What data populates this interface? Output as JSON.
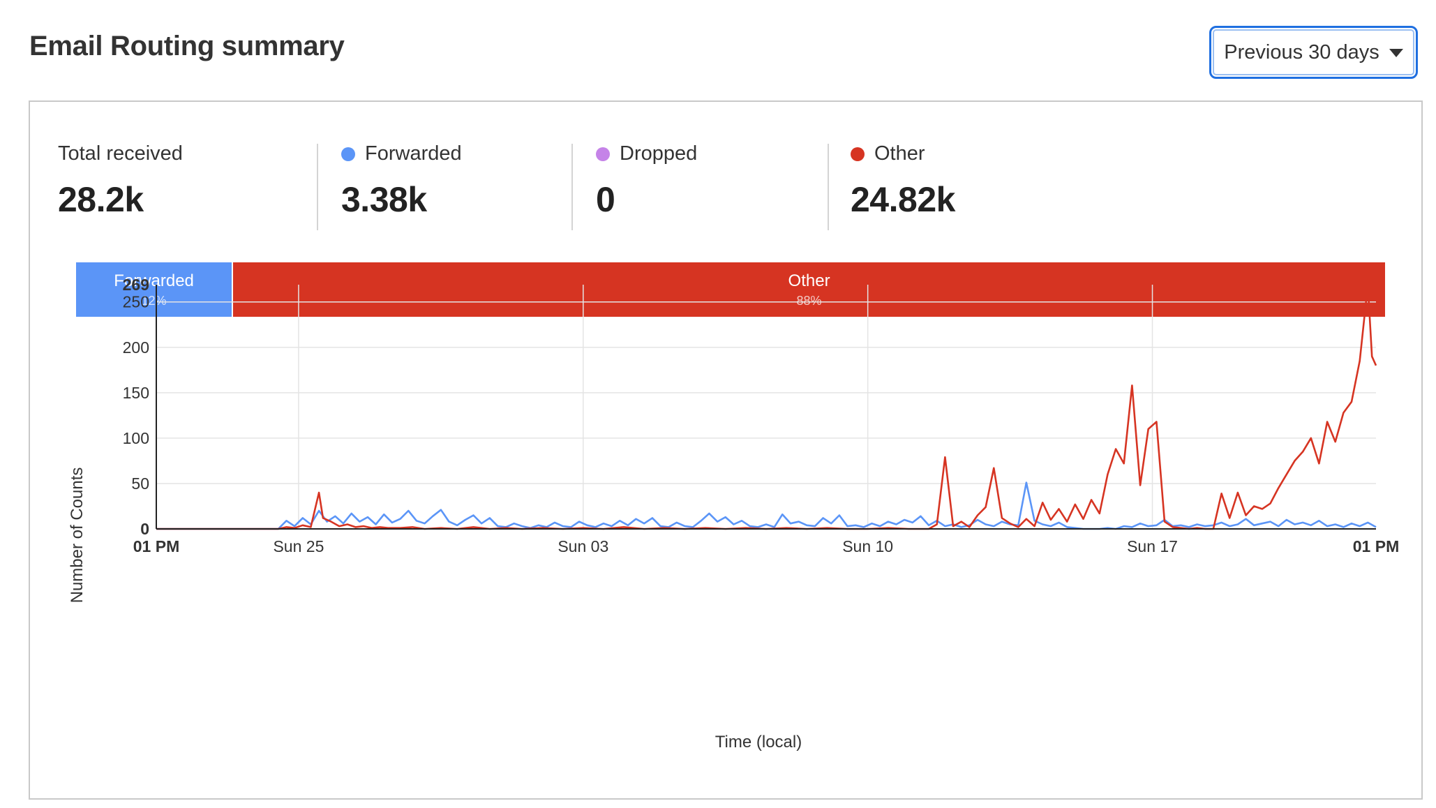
{
  "header": {
    "title": "Email Routing summary"
  },
  "range_select": {
    "label": "Previous 30 days"
  },
  "colors": {
    "forwarded": "#5b95f7",
    "dropped": "#c583e8",
    "other": "#d63422",
    "grid": "#e4e4e4",
    "axis": "#222222"
  },
  "stats": [
    {
      "label": "Total received",
      "value": "28.2k",
      "color": ""
    },
    {
      "label": "Forwarded",
      "value": "3.38k",
      "color": "#5b95f7"
    },
    {
      "label": "Dropped",
      "value": "0",
      "color": "#c583e8"
    },
    {
      "label": "Other",
      "value": "24.82k",
      "color": "#d63422"
    }
  ],
  "share_bar": [
    {
      "label": "Forwarded",
      "percent": "12%",
      "fraction": 0.12,
      "color": "#5b95f7"
    },
    {
      "label": "Other",
      "percent": "88%",
      "fraction": 0.88,
      "color": "#d63422"
    }
  ],
  "chart_data": {
    "type": "line",
    "xlabel": "Time (local)",
    "ylabel": "Number of Counts",
    "ylim": [
      0,
      269
    ],
    "yticks": [
      0,
      50,
      100,
      150,
      200,
      250,
      269
    ],
    "xlim": [
      0,
      30
    ],
    "xticks": [
      {
        "x": 0,
        "label": "01 PM",
        "bold": true
      },
      {
        "x": 3.5,
        "label": "Sun 25",
        "bold": false
      },
      {
        "x": 10.5,
        "label": "Sun 03",
        "bold": false
      },
      {
        "x": 17.5,
        "label": "Sun 10",
        "bold": false
      },
      {
        "x": 24.5,
        "label": "Sun 17",
        "bold": false
      },
      {
        "x": 30,
        "label": "01 PM",
        "bold": true
      }
    ],
    "grid": true,
    "series": [
      {
        "name": "Forwarded",
        "color": "#5b95f7",
        "points": [
          [
            0,
            0
          ],
          [
            3.0,
            0
          ],
          [
            3.2,
            9
          ],
          [
            3.4,
            3
          ],
          [
            3.6,
            12
          ],
          [
            3.8,
            5
          ],
          [
            4.0,
            20
          ],
          [
            4.2,
            8
          ],
          [
            4.4,
            14
          ],
          [
            4.6,
            6
          ],
          [
            4.8,
            17
          ],
          [
            5.0,
            8
          ],
          [
            5.2,
            13
          ],
          [
            5.4,
            5
          ],
          [
            5.6,
            16
          ],
          [
            5.8,
            7
          ],
          [
            6.0,
            11
          ],
          [
            6.2,
            20
          ],
          [
            6.4,
            9
          ],
          [
            6.6,
            6
          ],
          [
            6.8,
            14
          ],
          [
            7.0,
            21
          ],
          [
            7.2,
            8
          ],
          [
            7.4,
            4
          ],
          [
            7.6,
            10
          ],
          [
            7.8,
            15
          ],
          [
            8.0,
            6
          ],
          [
            8.2,
            12
          ],
          [
            8.4,
            3
          ],
          [
            8.6,
            2
          ],
          [
            8.8,
            6
          ],
          [
            9.0,
            3
          ],
          [
            9.2,
            1
          ],
          [
            9.4,
            4
          ],
          [
            9.6,
            2
          ],
          [
            9.8,
            7
          ],
          [
            10.0,
            3
          ],
          [
            10.2,
            2
          ],
          [
            10.4,
            8
          ],
          [
            10.6,
            4
          ],
          [
            10.8,
            2
          ],
          [
            11.0,
            6
          ],
          [
            11.2,
            3
          ],
          [
            11.4,
            9
          ],
          [
            11.6,
            4
          ],
          [
            11.8,
            11
          ],
          [
            12.0,
            6
          ],
          [
            12.2,
            12
          ],
          [
            12.4,
            3
          ],
          [
            12.6,
            2
          ],
          [
            12.8,
            7
          ],
          [
            13.0,
            3
          ],
          [
            13.2,
            2
          ],
          [
            13.4,
            9
          ],
          [
            13.6,
            17
          ],
          [
            13.8,
            8
          ],
          [
            14.0,
            13
          ],
          [
            14.2,
            5
          ],
          [
            14.4,
            9
          ],
          [
            14.6,
            3
          ],
          [
            14.8,
            2
          ],
          [
            15.0,
            5
          ],
          [
            15.2,
            2
          ],
          [
            15.4,
            16
          ],
          [
            15.6,
            6
          ],
          [
            15.8,
            8
          ],
          [
            16.0,
            4
          ],
          [
            16.2,
            3
          ],
          [
            16.4,
            12
          ],
          [
            16.6,
            6
          ],
          [
            16.8,
            15
          ],
          [
            17.0,
            3
          ],
          [
            17.2,
            4
          ],
          [
            17.4,
            2
          ],
          [
            17.6,
            6
          ],
          [
            17.8,
            3
          ],
          [
            18.0,
            8
          ],
          [
            18.2,
            5
          ],
          [
            18.4,
            10
          ],
          [
            18.6,
            7
          ],
          [
            18.8,
            14
          ],
          [
            19.0,
            4
          ],
          [
            19.2,
            9
          ],
          [
            19.4,
            3
          ],
          [
            19.6,
            5
          ],
          [
            19.8,
            2
          ],
          [
            20.0,
            4
          ],
          [
            20.2,
            10
          ],
          [
            20.4,
            5
          ],
          [
            20.6,
            3
          ],
          [
            20.8,
            8
          ],
          [
            21.0,
            5
          ],
          [
            21.2,
            4
          ],
          [
            21.4,
            51
          ],
          [
            21.6,
            9
          ],
          [
            21.8,
            5
          ],
          [
            22.0,
            3
          ],
          [
            22.2,
            7
          ],
          [
            22.4,
            2
          ],
          [
            22.6,
            1
          ],
          [
            22.8,
            0
          ],
          [
            23.0,
            0
          ],
          [
            23.2,
            0
          ],
          [
            23.4,
            1
          ],
          [
            23.6,
            0
          ],
          [
            23.8,
            3
          ],
          [
            24.0,
            2
          ],
          [
            24.2,
            6
          ],
          [
            24.4,
            3
          ],
          [
            24.6,
            4
          ],
          [
            24.8,
            10
          ],
          [
            25.0,
            3
          ],
          [
            25.2,
            4
          ],
          [
            25.4,
            2
          ],
          [
            25.6,
            5
          ],
          [
            25.8,
            3
          ],
          [
            26.0,
            4
          ],
          [
            26.2,
            7
          ],
          [
            26.4,
            3
          ],
          [
            26.6,
            5
          ],
          [
            26.8,
            11
          ],
          [
            27.0,
            4
          ],
          [
            27.2,
            6
          ],
          [
            27.4,
            8
          ],
          [
            27.6,
            3
          ],
          [
            27.8,
            10
          ],
          [
            28.0,
            5
          ],
          [
            28.2,
            7
          ],
          [
            28.4,
            4
          ],
          [
            28.6,
            9
          ],
          [
            28.8,
            3
          ],
          [
            29.0,
            5
          ],
          [
            29.2,
            2
          ],
          [
            29.4,
            6
          ],
          [
            29.6,
            3
          ],
          [
            29.8,
            7
          ],
          [
            30,
            2
          ]
        ]
      },
      {
        "name": "Dropped",
        "color": "#c583e8",
        "points": [
          [
            0,
            0
          ],
          [
            30,
            0
          ]
        ]
      },
      {
        "name": "Other",
        "color": "#d63422",
        "points": [
          [
            0,
            0
          ],
          [
            3.0,
            0
          ],
          [
            3.2,
            2
          ],
          [
            3.4,
            1
          ],
          [
            3.6,
            4
          ],
          [
            3.8,
            2
          ],
          [
            4.0,
            40
          ],
          [
            4.1,
            12
          ],
          [
            4.3,
            8
          ],
          [
            4.5,
            3
          ],
          [
            4.7,
            5
          ],
          [
            4.9,
            2
          ],
          [
            5.1,
            3
          ],
          [
            5.3,
            1
          ],
          [
            5.5,
            2
          ],
          [
            5.7,
            1
          ],
          [
            6.0,
            1
          ],
          [
            6.3,
            2
          ],
          [
            6.6,
            0
          ],
          [
            7.0,
            1
          ],
          [
            7.4,
            0
          ],
          [
            7.8,
            2
          ],
          [
            8.2,
            0
          ],
          [
            8.6,
            1
          ],
          [
            9.0,
            0
          ],
          [
            9.5,
            1
          ],
          [
            10.0,
            0
          ],
          [
            10.5,
            1
          ],
          [
            11.0,
            0
          ],
          [
            11.5,
            2
          ],
          [
            12.0,
            0
          ],
          [
            12.5,
            1
          ],
          [
            13.0,
            0
          ],
          [
            13.5,
            1
          ],
          [
            14.0,
            0
          ],
          [
            14.5,
            1
          ],
          [
            15.0,
            0
          ],
          [
            15.5,
            1
          ],
          [
            16.0,
            0
          ],
          [
            16.5,
            1
          ],
          [
            17.0,
            0
          ],
          [
            17.5,
            0
          ],
          [
            18.0,
            1
          ],
          [
            18.5,
            0
          ],
          [
            19.0,
            0
          ],
          [
            19.2,
            5
          ],
          [
            19.4,
            79
          ],
          [
            19.6,
            3
          ],
          [
            19.8,
            8
          ],
          [
            20.0,
            2
          ],
          [
            20.2,
            15
          ],
          [
            20.4,
            24
          ],
          [
            20.6,
            67
          ],
          [
            20.8,
            12
          ],
          [
            21.0,
            6
          ],
          [
            21.2,
            2
          ],
          [
            21.4,
            11
          ],
          [
            21.6,
            3
          ],
          [
            21.8,
            29
          ],
          [
            22.0,
            10
          ],
          [
            22.2,
            22
          ],
          [
            22.4,
            8
          ],
          [
            22.6,
            27
          ],
          [
            22.8,
            11
          ],
          [
            23.0,
            32
          ],
          [
            23.2,
            17
          ],
          [
            23.4,
            60
          ],
          [
            23.6,
            88
          ],
          [
            23.8,
            72
          ],
          [
            24.0,
            158
          ],
          [
            24.2,
            48
          ],
          [
            24.4,
            110
          ],
          [
            24.6,
            118
          ],
          [
            24.8,
            8
          ],
          [
            25.0,
            2
          ],
          [
            25.2,
            1
          ],
          [
            25.4,
            0
          ],
          [
            25.6,
            1
          ],
          [
            25.8,
            0
          ],
          [
            26.0,
            0
          ],
          [
            26.2,
            39
          ],
          [
            26.4,
            12
          ],
          [
            26.6,
            40
          ],
          [
            26.8,
            15
          ],
          [
            27.0,
            25
          ],
          [
            27.2,
            22
          ],
          [
            27.4,
            28
          ],
          [
            27.6,
            45
          ],
          [
            27.8,
            60
          ],
          [
            28.0,
            75
          ],
          [
            28.2,
            85
          ],
          [
            28.4,
            100
          ],
          [
            28.6,
            72
          ],
          [
            28.8,
            118
          ],
          [
            29.0,
            96
          ],
          [
            29.2,
            128
          ],
          [
            29.4,
            140
          ],
          [
            29.6,
            185
          ],
          [
            29.8,
            269
          ],
          [
            29.9,
            190
          ],
          [
            30.0,
            180
          ]
        ]
      }
    ]
  }
}
